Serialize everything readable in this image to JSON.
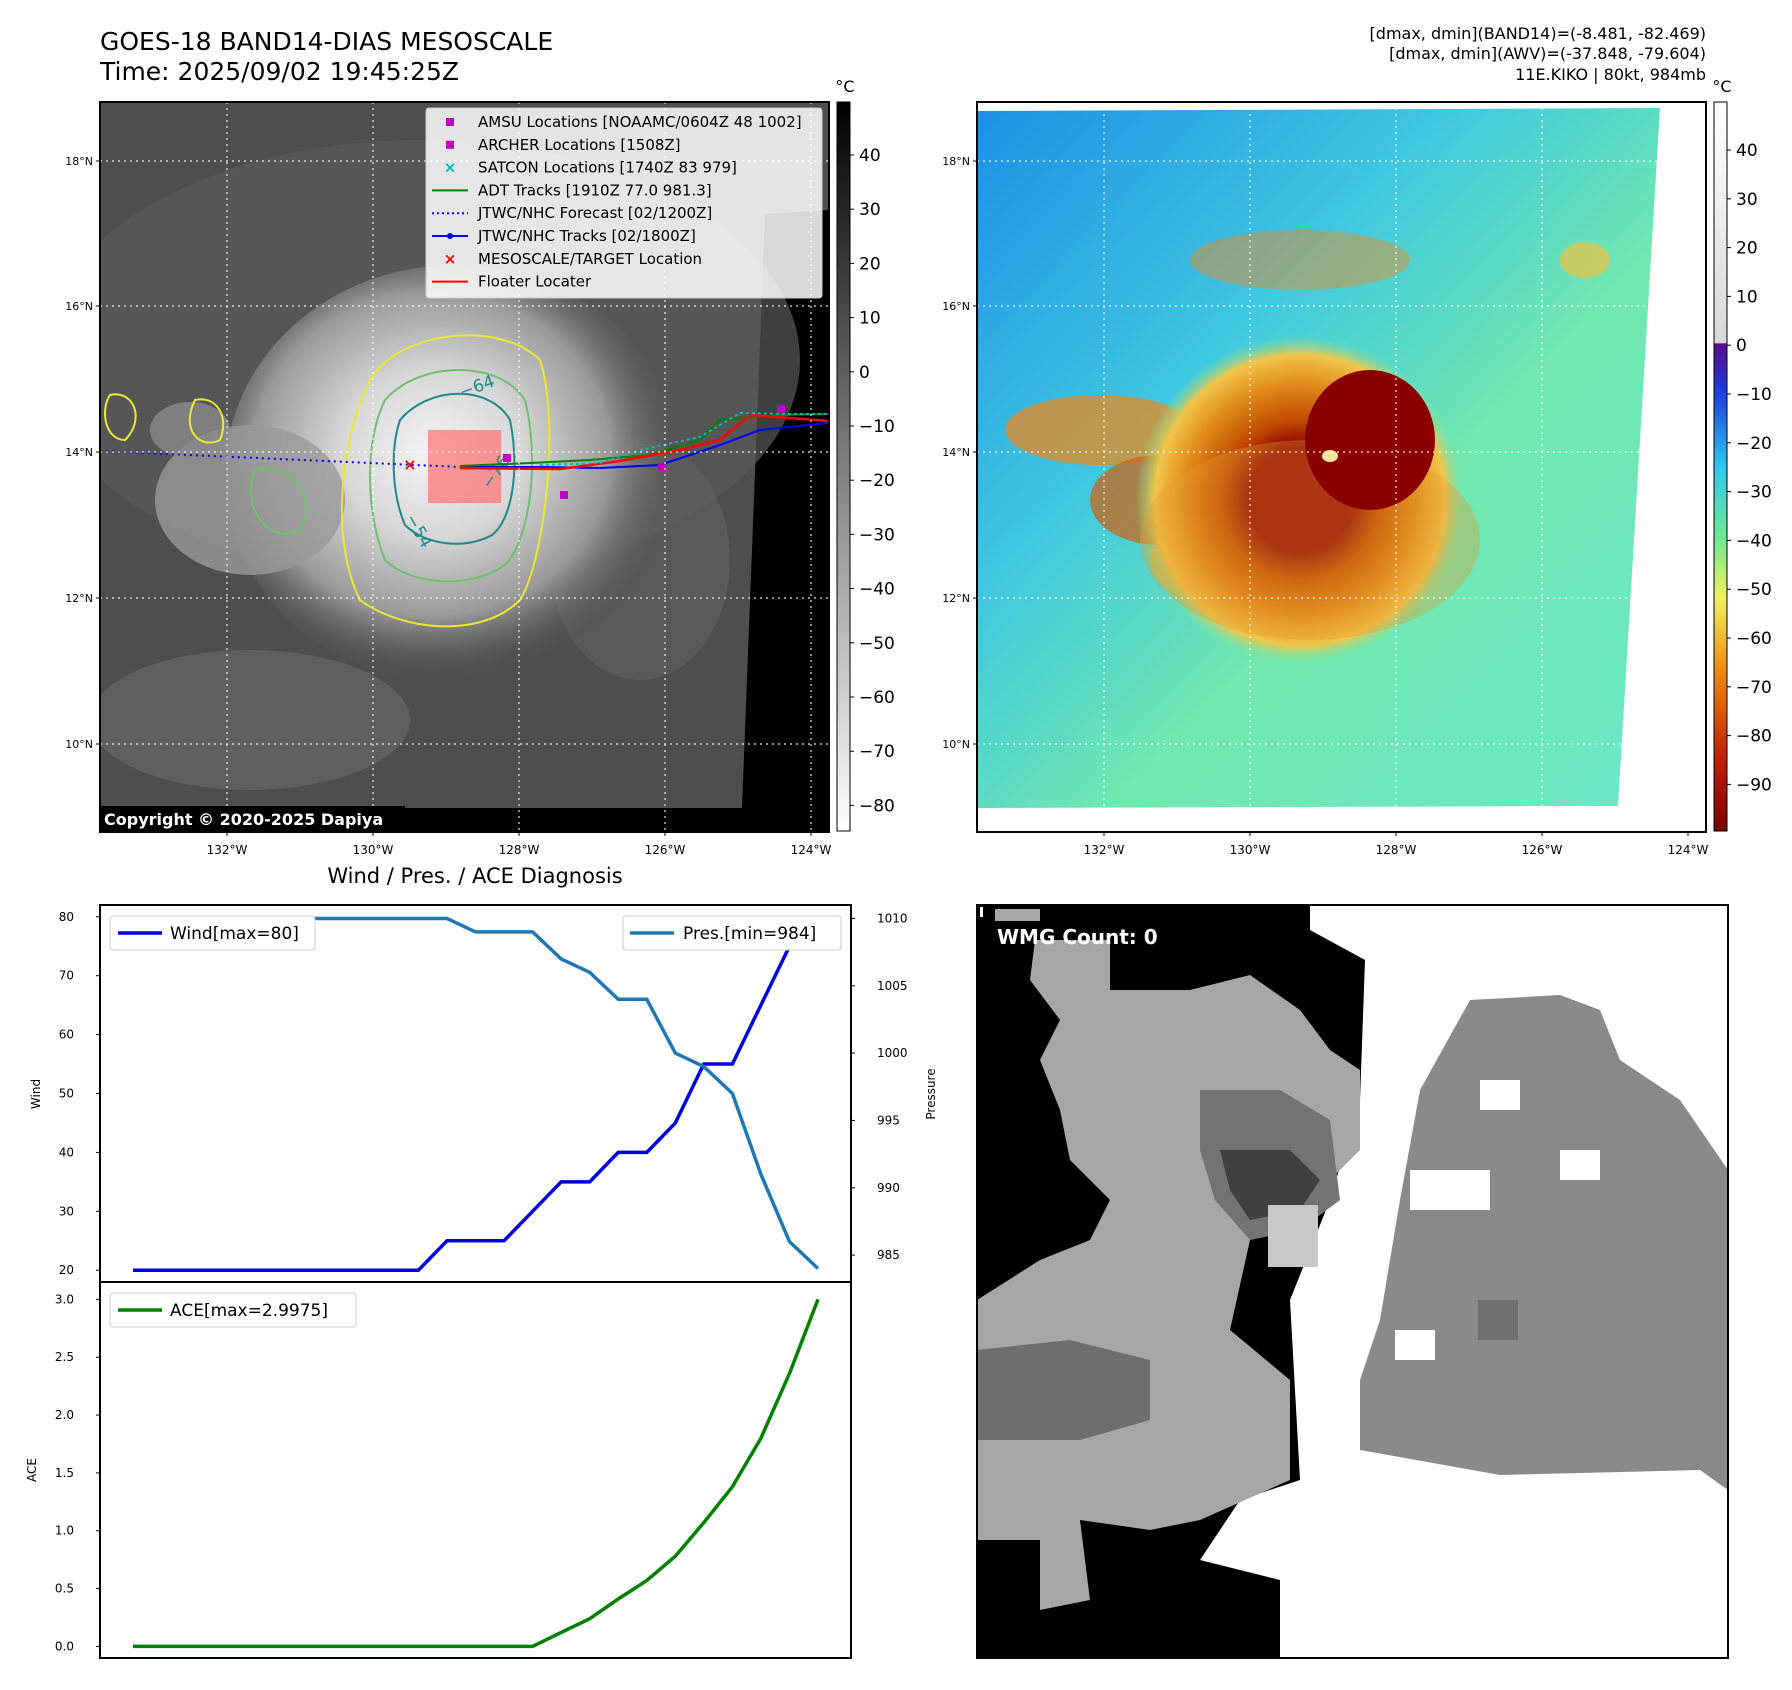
{
  "header": {
    "title_line1": "GOES-18 BAND14-DIAS MESOSCALE",
    "title_line2": "Time: 2025/09/02 19:45:25Z",
    "stats_line1": "[dmax, dmin](BAND14)=(-8.481, -82.469)",
    "stats_line2": "[dmax, dmin](AWV)=(-37.848, -79.604)",
    "stats_line3": "11E.KIKO | 80kt, 984mb"
  },
  "colors": {
    "wind": "#0000dd",
    "pressure": "#1f77b4",
    "ace": "#008000",
    "amsu": "#c000c0",
    "satcon": "#00b8b8",
    "adt": "#008000",
    "forecast": "#0000ff",
    "track": "#0000ff",
    "target": "#ff0000",
    "floater": "#ff0000"
  },
  "map_axes": {
    "lat_ticks": [
      "18°N",
      "16°N",
      "14°N",
      "12°N",
      "10°N"
    ],
    "lon_ticks": [
      "132°W",
      "130°W",
      "128°W",
      "126°W",
      "124°W"
    ]
  },
  "ir_panel": {
    "colorbar_unit": "°C",
    "colorbar_ticks": [
      "40",
      "30",
      "20",
      "10",
      "0",
      "−10",
      "−20",
      "−30",
      "−40",
      "−50",
      "−60",
      "−70",
      "−80"
    ],
    "contour_labels": [
      "−64",
      "−76",
      "−54"
    ],
    "copyright": "Copyright © 2020-2025 Dapiya",
    "legend": [
      {
        "label": "AMSU Locations [NOAAMC/0604Z 48 1002]",
        "marker": "square",
        "color": "#c000c0"
      },
      {
        "label": "ARCHER Locations [1508Z]",
        "marker": "square",
        "color": "#c000c0"
      },
      {
        "label": "SATCON Locations [1740Z 83 979]",
        "marker": "x",
        "color": "#00b8b8"
      },
      {
        "label": "ADT Tracks [1910Z 77.0 981.3]",
        "marker": "line",
        "color": "#008000"
      },
      {
        "label": "JTWC/NHC Forecast [02/1200Z]",
        "marker": "dotted",
        "color": "#0000ff"
      },
      {
        "label": "JTWC/NHC Tracks [02/1800Z]",
        "marker": "line-dot",
        "color": "#0000ff"
      },
      {
        "label": "MESOSCALE/TARGET Location",
        "marker": "x",
        "color": "#ff0000"
      },
      {
        "label": "Floater Locater",
        "marker": "line",
        "color": "#ff0000"
      }
    ]
  },
  "awv_panel": {
    "colorbar_unit": "°C",
    "colorbar_ticks": [
      "40",
      "30",
      "20",
      "10",
      "0",
      "−10",
      "−20",
      "−30",
      "−40",
      "−50",
      "−60",
      "−70",
      "−80",
      "−90"
    ]
  },
  "wmg_panel": {
    "label": "WMG Count: 0"
  },
  "chart_data": [
    {
      "type": "line",
      "title": "Wind / Pres. / ACE Diagnosis",
      "x": [
        0,
        1,
        2,
        3,
        4,
        5,
        6,
        7,
        8,
        9,
        10,
        11,
        12,
        13,
        14,
        15,
        16,
        17,
        18,
        19,
        20,
        21,
        22,
        23,
        24
      ],
      "series": [
        {
          "name": "Wind[max=80]",
          "axis": "left",
          "ylabel": "Wind",
          "ylim": [
            18,
            82
          ],
          "values": [
            20,
            20,
            20,
            20,
            20,
            20,
            20,
            20,
            20,
            20,
            20,
            25,
            25,
            25,
            30,
            35,
            35,
            40,
            40,
            45,
            55,
            55,
            65,
            75,
            80
          ]
        },
        {
          "name": "Pres.[min=984]",
          "axis": "right",
          "ylabel": "Pressure",
          "ylim": [
            983,
            1011
          ],
          "values": [
            1010,
            1010,
            1010,
            1010,
            1010,
            1010,
            1010,
            1010,
            1010,
            1010,
            1010,
            1010,
            1009,
            1009,
            1009,
            1007,
            1006,
            1004,
            1004,
            1000,
            999,
            997,
            991,
            986,
            984
          ]
        }
      ],
      "left_ticks": [
        "80",
        "70",
        "60",
        "50",
        "40",
        "30",
        "20"
      ],
      "right_ticks": [
        "1010",
        "1005",
        "1000",
        "995",
        "990",
        "985"
      ]
    },
    {
      "type": "line",
      "x": [
        0,
        1,
        2,
        3,
        4,
        5,
        6,
        7,
        8,
        9,
        10,
        11,
        12,
        13,
        14,
        15,
        16,
        17,
        18,
        19,
        20,
        21,
        22,
        23,
        24
      ],
      "series": [
        {
          "name": "ACE[max=2.9975]",
          "ylabel": "ACE",
          "ylim": [
            -0.1,
            3.15
          ],
          "values": [
            0,
            0,
            0,
            0,
            0,
            0,
            0,
            0,
            0,
            0,
            0,
            0,
            0,
            0,
            0,
            0.12,
            0.24,
            0.41,
            0.57,
            0.78,
            1.07,
            1.38,
            1.8,
            2.36,
            3.0
          ]
        }
      ],
      "ticks": [
        "3.0",
        "2.5",
        "2.0",
        "1.5",
        "1.0",
        "0.5",
        "0.0"
      ]
    }
  ]
}
